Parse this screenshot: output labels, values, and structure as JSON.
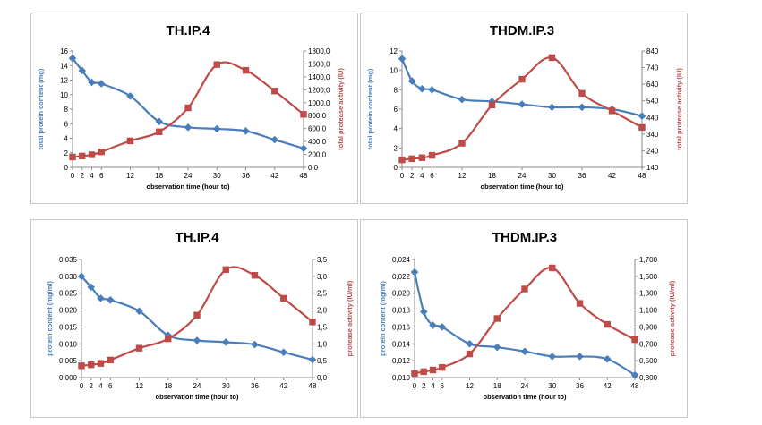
{
  "chart_data": [
    {
      "type": "line",
      "title": "TH.IP.4",
      "xlabel": "observation time (hour to)",
      "categories": [
        "0",
        "2",
        "4",
        "6",
        "12",
        "18",
        "24",
        "30",
        "36",
        "42",
        "48"
      ],
      "x": [
        0,
        2,
        4,
        6,
        12,
        18,
        24,
        30,
        36,
        42,
        48
      ],
      "y_left": {
        "label": "total protein content (mg)",
        "ticks": [
          "0",
          "2",
          "4",
          "6",
          "8",
          "10",
          "12",
          "14",
          "16"
        ],
        "min": 0,
        "max": 16,
        "color": "#4a7ebb"
      },
      "y_right": {
        "label": "total protease activity (IU)",
        "ticks": [
          "0,0",
          "200,0",
          "400,0",
          "600,0",
          "800,0",
          "1000,0",
          "1200,0",
          "1400,0",
          "1600,0",
          "1800,0"
        ],
        "min": 0,
        "max": 1800,
        "color": "#be4b48"
      },
      "series": [
        {
          "name": "total protein content (mg)",
          "axis": "left",
          "marker": "diamond",
          "color": "#4a7ebb",
          "values": [
            15.0,
            13.3,
            11.7,
            11.5,
            9.8,
            6.3,
            5.5,
            5.3,
            5.0,
            3.8,
            2.6
          ]
        },
        {
          "name": "total protease activity (IU)",
          "axis": "right",
          "marker": "square",
          "color": "#be4b48",
          "values": [
            160,
            175,
            195,
            240,
            410,
            550,
            920,
            1590,
            1500,
            1180,
            820
          ]
        }
      ]
    },
    {
      "type": "line",
      "title": "THDM.IP.3",
      "xlabel": "observation time (hour to)",
      "categories": [
        "0",
        "2",
        "4",
        "6",
        "12",
        "18",
        "24",
        "30",
        "36",
        "42",
        "48"
      ],
      "x": [
        0,
        2,
        4,
        6,
        12,
        18,
        24,
        30,
        36,
        42,
        48
      ],
      "y_left": {
        "label": "total protein content (mg)",
        "ticks": [
          "0",
          "2",
          "4",
          "6",
          "8",
          "10",
          "12"
        ],
        "min": 0,
        "max": 12,
        "color": "#4a7ebb"
      },
      "y_right": {
        "label": "total protease activity (IU)",
        "ticks": [
          "140",
          "240",
          "340",
          "440",
          "540",
          "640",
          "740",
          "840"
        ],
        "min": 140,
        "max": 840,
        "color": "#be4b48"
      },
      "series": [
        {
          "name": "total protein content (mg)",
          "axis": "left",
          "marker": "diamond",
          "color": "#4a7ebb",
          "values": [
            11.2,
            8.9,
            8.1,
            8.0,
            7.0,
            6.8,
            6.5,
            6.2,
            6.2,
            6.0,
            5.3
          ]
        },
        {
          "name": "total protease activity (IU)",
          "axis": "right",
          "marker": "square",
          "color": "#be4b48",
          "values": [
            185,
            192,
            198,
            212,
            285,
            515,
            670,
            800,
            585,
            480,
            380
          ]
        }
      ]
    },
    {
      "type": "line",
      "title": "TH.IP.4",
      "xlabel": "observation time (hour to)",
      "categories": [
        "0",
        "2",
        "4",
        "6",
        "12",
        "18",
        "24",
        "30",
        "36",
        "42",
        "48"
      ],
      "x": [
        0,
        2,
        4,
        6,
        12,
        18,
        24,
        30,
        36,
        42,
        48
      ],
      "y_left": {
        "label": "protein content (mg/ml)",
        "ticks": [
          "0,000",
          "0,005",
          "0,010",
          "0,015",
          "0,020",
          "0,025",
          "0,030",
          "0,035"
        ],
        "min": 0,
        "max": 0.035,
        "color": "#4a7ebb"
      },
      "y_right": {
        "label": "protease activity (IU/ml)",
        "ticks": [
          "0,0",
          "0,5",
          "1,0",
          "1,5",
          "2,0",
          "2,5",
          "3,0",
          "3,5"
        ],
        "min": 0,
        "max": 3.5,
        "color": "#be4b48"
      },
      "series": [
        {
          "name": "protein content (mg/ml)",
          "axis": "left",
          "marker": "diamond",
          "color": "#4a7ebb",
          "values": [
            0.03,
            0.0268,
            0.0235,
            0.023,
            0.0197,
            0.0125,
            0.011,
            0.0105,
            0.0098,
            0.0075,
            0.0053
          ]
        },
        {
          "name": "protease activity (IU/ml)",
          "axis": "right",
          "marker": "square",
          "color": "#be4b48",
          "values": [
            0.35,
            0.38,
            0.42,
            0.52,
            0.87,
            1.15,
            1.85,
            3.2,
            3.03,
            2.35,
            1.65
          ]
        }
      ]
    },
    {
      "type": "line",
      "title": "THDM.IP.3",
      "xlabel": "observation time (hour to)",
      "categories": [
        "0",
        "2",
        "4",
        "6",
        "12",
        "18",
        "24",
        "30",
        "36",
        "42",
        "48"
      ],
      "x": [
        0,
        2,
        4,
        6,
        12,
        18,
        24,
        30,
        36,
        42,
        48
      ],
      "y_left": {
        "label": "protein content (mg/ml)",
        "ticks": [
          "0,010",
          "0,012",
          "0,014",
          "0,016",
          "0,018",
          "0,020",
          "0,022",
          "0,024"
        ],
        "min": 0.01,
        "max": 0.024,
        "color": "#4a7ebb"
      },
      "y_right": {
        "label": "protease activity (IU/ml)",
        "ticks": [
          "0,300",
          "0,500",
          "0,700",
          "0,900",
          "1,100",
          "1,300",
          "1,500",
          "1,700"
        ],
        "min": 0.3,
        "max": 1.7,
        "color": "#be4b48"
      },
      "series": [
        {
          "name": "protein content (mg/ml)",
          "axis": "left",
          "marker": "diamond",
          "color": "#4a7ebb",
          "values": [
            0.0225,
            0.0178,
            0.0162,
            0.016,
            0.014,
            0.0136,
            0.0131,
            0.0125,
            0.0125,
            0.0122,
            0.0103
          ]
        },
        {
          "name": "protease activity (IU/ml)",
          "axis": "right",
          "marker": "square",
          "color": "#be4b48",
          "values": [
            0.35,
            0.37,
            0.39,
            0.42,
            0.58,
            1.0,
            1.35,
            1.6,
            1.18,
            0.93,
            0.75
          ]
        }
      ]
    }
  ]
}
